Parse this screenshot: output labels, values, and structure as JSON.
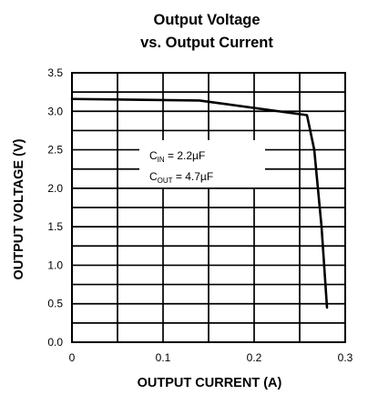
{
  "chart_data": {
    "type": "line",
    "title": "Output Voltage",
    "subtitle": "vs. Output Current",
    "xlabel": "OUTPUT CURRENT (A)",
    "ylabel": "OUTPUT VOLTAGE (V)",
    "xlim": [
      0,
      0.3
    ],
    "ylim": [
      0,
      3.5
    ],
    "x_ticks": [
      "0",
      "0.1",
      "0.2",
      "0.3"
    ],
    "y_ticks": [
      "0.0",
      "0.5",
      "1.0",
      "1.5",
      "2.0",
      "2.5",
      "3.0",
      "3.5"
    ],
    "grid": true,
    "series": [
      {
        "x": [
          0,
          0.14,
          0.258,
          0.266,
          0.274,
          0.28
        ],
        "y": [
          3.16,
          3.14,
          2.95,
          2.5,
          1.5,
          0.45
        ]
      }
    ],
    "annotation": {
      "line1_main": "C",
      "line1_sub": "IN",
      "line1_rest": " = 2.2µF",
      "line2_main": "C",
      "line2_sub": "OUT",
      "line2_rest": " = 4.7µF"
    },
    "colors": {
      "line": "#000000",
      "grid": "#000000",
      "background": "#ffffff"
    }
  }
}
